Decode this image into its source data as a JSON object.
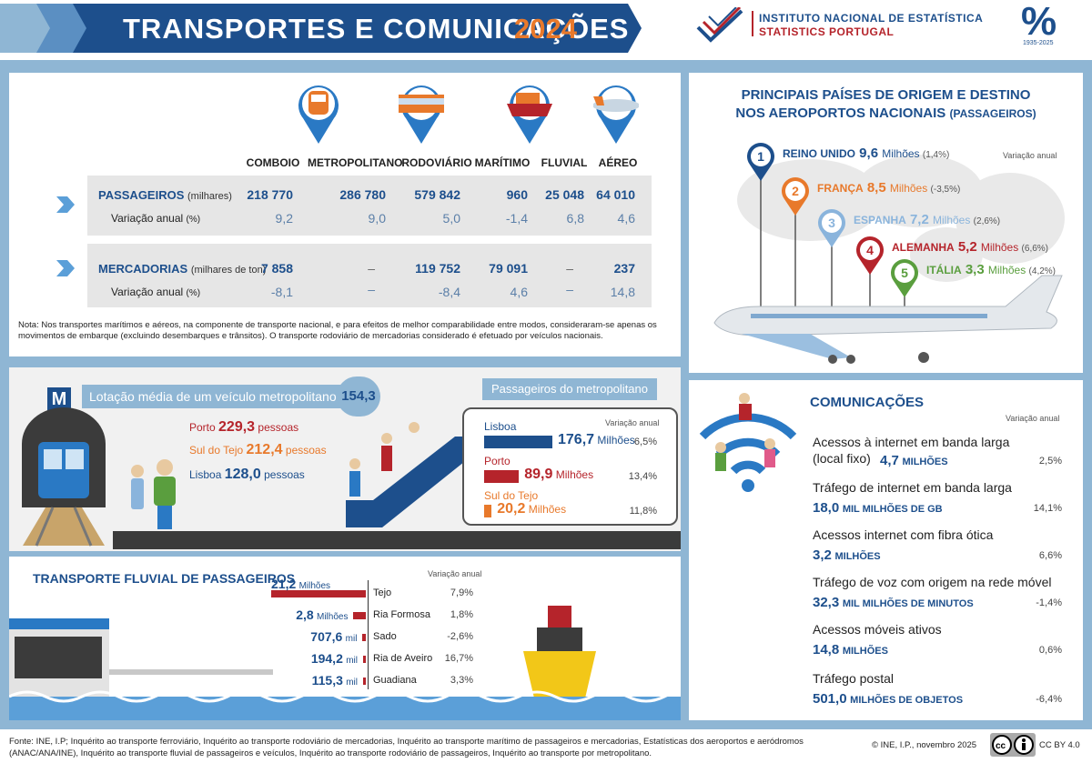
{
  "header": {
    "title": "TRANSPORTES E COMUNICAÇÕES",
    "year": "2024",
    "org_line1": "INSTITUTO NACIONAL DE ESTATÍSTICA",
    "org_line2": "STATISTICS PORTUGAL",
    "anniversary": "1935-2025"
  },
  "transport": {
    "modes": [
      "COMBOIO",
      "METROPOLITANO",
      "RODOVIÁRIO",
      "MARÍTIMO",
      "FLUVIAL",
      "AÉREO"
    ],
    "passengers": {
      "label": "PASSAGEIROS",
      "unit": "(milhares)",
      "values": [
        "218 770",
        "286 780",
        "579 842",
        "960",
        "25 048",
        "64 010"
      ],
      "var_label": "Variação anual",
      "var_unit": "(%)",
      "variation": [
        "9,2",
        "9,0",
        "5,0",
        "-1,4",
        "6,8",
        "4,6"
      ]
    },
    "goods": {
      "label": "MERCADORIAS",
      "unit": "(milhares de ton)",
      "values": [
        "7 858",
        "–",
        "119 752",
        "79 091",
        "–",
        "237"
      ],
      "var_label": "Variação anual",
      "var_unit": "(%)",
      "variation": [
        "-8,1",
        "–",
        "-8,4",
        "4,6",
        "–",
        "14,8"
      ]
    },
    "note": "Nota: Nos transportes marítimos e aéreos, na componente de transporte nacional, e para efeitos de melhor comparabilidade entre modos, consideraram-se apenas os movimentos de embarque (excluindo desembarques e trânsitos). O transporte rodoviário de mercadorias considerado é efetuado por veículos nacionais."
  },
  "airports": {
    "title1": "PRINCIPAIS PAÍSES DE ORIGEM E DESTINO",
    "title2": "NOS AEROPORTOS NACIONAIS",
    "title2b": "(PASSAGEIROS)",
    "var_label": "Variação anual",
    "countries": [
      {
        "rank": "1",
        "name": "REINO UNIDO",
        "value": "9,6",
        "unit": "Milhões",
        "var": "(1,4%)",
        "color": "#1d4f8c"
      },
      {
        "rank": "2",
        "name": "FRANÇA",
        "value": "8,5",
        "unit": "Milhões",
        "var": "(-3,5%)",
        "color": "#e8792b"
      },
      {
        "rank": "3",
        "name": "ESPANHA",
        "value": "7,2",
        "unit": "Milhões",
        "var": "(2,6%)",
        "color": "#8ab4dc"
      },
      {
        "rank": "4",
        "name": "ALEMANHA",
        "value": "5,2",
        "unit": "Milhões",
        "var": "(6,6%)",
        "color": "#b5242b"
      },
      {
        "rank": "5",
        "name": "ITÁLIA",
        "value": "3,3",
        "unit": "Milhões",
        "var": "(4,2%)",
        "color": "#5a9e3e"
      }
    ]
  },
  "metro": {
    "badge": "M",
    "occupancy_label": "Lotação média de um veículo metropolitano",
    "occupancy_value": "154,3",
    "cities": [
      {
        "name": "Porto",
        "value": "229,3",
        "unit": "pessoas"
      },
      {
        "name": "Sul do Tejo",
        "value": "212,4",
        "unit": "pessoas"
      },
      {
        "name": "Lisboa",
        "value": "128,0",
        "unit": "pessoas"
      }
    ],
    "passengers_title": "Passageiros do metropolitano",
    "var_label": "Variação anual",
    "bars": [
      {
        "name": "Lisboa",
        "value": "176,7",
        "unit": "Milhões",
        "var": "6,5%",
        "fraction": 1.0,
        "color": "#1d4f8c"
      },
      {
        "name": "Porto",
        "value": "89,9",
        "unit": "Milhões",
        "var": "13,4%",
        "fraction": 0.51,
        "color": "#b5242b"
      },
      {
        "name": "Sul do Tejo",
        "value": "20,2",
        "unit": "Milhões",
        "var": "11,8%",
        "fraction": 0.11,
        "color": "#e8792b"
      }
    ]
  },
  "fluvial": {
    "title": "TRANSPORTE FLUVIAL DE PASSAGEIROS",
    "var_label": "Variação anual",
    "rows": [
      {
        "value": "21,2",
        "unit": "Milhões",
        "name": "Tejo",
        "var": "7,9%",
        "fraction": 1.0
      },
      {
        "value": "2,8",
        "unit": "Milhões",
        "name": "Ria Formosa",
        "var": "1,8%",
        "fraction": 0.13
      },
      {
        "value": "707,6",
        "unit": "mil",
        "name": "Sado",
        "var": "-2,6%",
        "fraction": 0.034
      },
      {
        "value": "194,2",
        "unit": "mil",
        "name": "Ria de Aveiro",
        "var": "16,7%",
        "fraction": 0.009
      },
      {
        "value": "115,3",
        "unit": "mil",
        "name": "Guadiana",
        "var": "3,3%",
        "fraction": 0.005
      }
    ]
  },
  "communications": {
    "title": "COMUNICAÇÕES",
    "var_label": "Variação anual",
    "items": [
      {
        "label": "Acessos à internet em banda larga",
        "label2": "(local fixo)",
        "value": "4,7",
        "unit": "MILHÕES",
        "var": "2,5%"
      },
      {
        "label": "Tráfego de internet em banda larga",
        "value": "18,0",
        "unit": "MIL MILHÕES DE GB",
        "var": "14,1%"
      },
      {
        "label": "Acessos internet com fibra ótica",
        "value": "3,2",
        "unit": "MILHÕES",
        "var": "6,6%"
      },
      {
        "label": "Tráfego de voz com origem na rede móvel",
        "value": "32,3",
        "unit": "MIL MILHÕES DE MINUTOS",
        "var": "-1,4%"
      },
      {
        "label": "Acessos móveis ativos",
        "value": "14,8",
        "unit": "MILHÕES",
        "var": "0,6%"
      },
      {
        "label": "Tráfego postal",
        "value": "501,0",
        "unit": "MILHÕES DE OBJETOS",
        "var": "-6,4%"
      }
    ]
  },
  "footer": {
    "source": "Fonte: INE, I.P; Inquérito ao transporte ferroviário, Inquérito ao transporte rodoviário de mercadorias, Inquérito ao transporte marítimo de passageiros e mercadorias, Estatísticas dos aeroportos e aeródromos (ANAC/ANA/INE), Inquérito ao transporte fluvial de passageiros e veículos, Inquérito ao transporte rodoviário de passageiros, Inquérito ao transporte por metropolitano.",
    "copyright": "© INE, I.P., novembro 2025",
    "license": "CC BY 4.0"
  },
  "colors": {
    "navy": "#1d4f8c",
    "red": "#b5242b",
    "orange": "#e8792b",
    "light_blue": "#8fb6d4"
  }
}
